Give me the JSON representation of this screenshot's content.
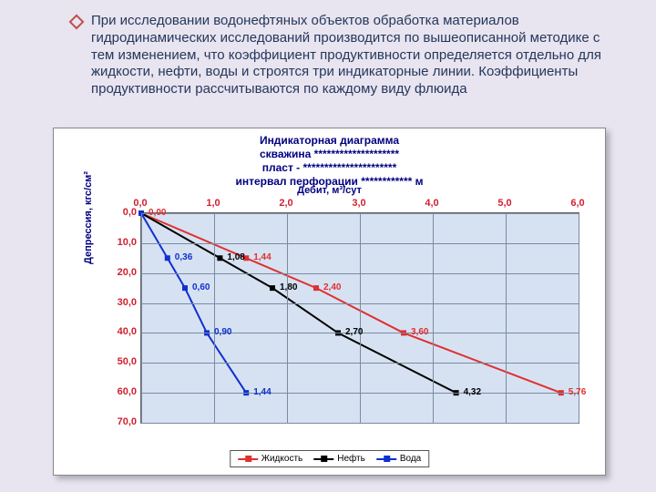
{
  "bullet_color": "#c0504d",
  "paragraph": "При исследовании водонефтяных объектов обработка материалов гидродинамических исследований производится по вышеописанной методике с тем изменением, что коэффициент продуктивности определяется отдельно для жидкости, нефти, воды и строятся три индикаторные линии. Коэффициенты продуктивности рассчитываются по каждому виду флюида",
  "chart": {
    "title_lines": [
      "Индикаторная диаграмма",
      "скважина ********************",
      "пласт - **********************",
      "интервал перфорации ************ м"
    ],
    "x_axis": {
      "title": "Дебит, м³/сут",
      "min": 0,
      "max": 6,
      "step": 1,
      "ticks": [
        "0,0",
        "1,0",
        "2,0",
        "3,0",
        "4,0",
        "5,0",
        "6,0"
      ],
      "color": "#d02030"
    },
    "y_axis": {
      "title": "Депрессия, кгс/см²",
      "min": 0,
      "max": 70,
      "step": 10,
      "ticks": [
        "0,0",
        "10,0",
        "20,0",
        "30,0",
        "40,0",
        "50,0",
        "60,0",
        "70,0"
      ],
      "color": "#d02030",
      "inverted": true
    },
    "plot_bg": "#d6e2f2",
    "grid_color": "#7a8aa0",
    "series": [
      {
        "name": "Жидкость",
        "color": "#e03030",
        "marker": "square-filled",
        "points": [
          [
            0,
            0
          ],
          [
            1.44,
            15
          ],
          [
            2.4,
            25
          ],
          [
            3.6,
            40
          ],
          [
            5.76,
            60
          ]
        ],
        "labels": [
          "0,00",
          "1,44",
          "2,40",
          "3,60",
          "5,76"
        ]
      },
      {
        "name": "Нефть",
        "color": "#000000",
        "marker": "square-filled",
        "points": [
          [
            0,
            0
          ],
          [
            1.08,
            15
          ],
          [
            1.8,
            25
          ],
          [
            2.7,
            40
          ],
          [
            4.32,
            60
          ]
        ],
        "labels": [
          "",
          "1,08",
          "1,80",
          "2,70",
          "4,32"
        ]
      },
      {
        "name": "Вода",
        "color": "#1030d0",
        "marker": "square-filled",
        "points": [
          [
            0,
            0
          ],
          [
            0.36,
            15
          ],
          [
            0.6,
            25
          ],
          [
            0.9,
            40
          ],
          [
            1.44,
            60
          ]
        ],
        "labels": [
          "",
          "0,36",
          "0,60",
          "0,90",
          "1,44"
        ]
      }
    ],
    "legend": [
      "Жидкость",
      "Нефть",
      "Вода"
    ],
    "legend_colors": [
      "#e03030",
      "#000000",
      "#1030d0"
    ]
  }
}
